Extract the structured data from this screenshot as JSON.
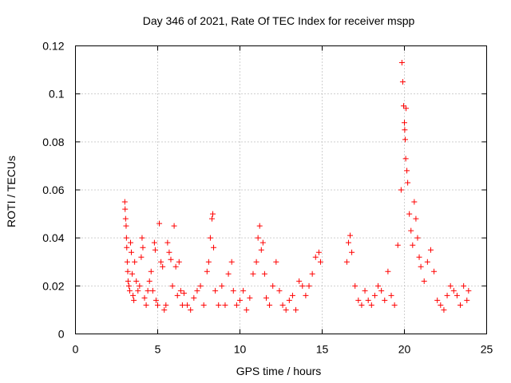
{
  "chart_data": {
    "type": "scatter",
    "title": "Day 346 of 2021, Rate Of TEC Index for receiver mspp",
    "xlabel": "GPS time / hours",
    "ylabel": "ROTI / TECUs",
    "xlim": [
      0,
      25
    ],
    "ylim": [
      0,
      0.12
    ],
    "x_ticks": [
      0,
      5,
      10,
      15,
      20,
      25
    ],
    "x_tick_labels": [
      "0",
      "5",
      "10",
      "15",
      "20",
      "25"
    ],
    "y_ticks": [
      0,
      0.02,
      0.04,
      0.06,
      0.08,
      0.1,
      0.12
    ],
    "y_tick_labels": [
      "0",
      "0.02",
      "0.04",
      "0.06",
      "0.08",
      "0.1",
      "0.12"
    ],
    "grid": true,
    "marker": "+",
    "color": "#ff0000",
    "series": [
      {
        "name": "ROTI",
        "points": [
          [
            3.0,
            0.055
          ],
          [
            3.02,
            0.052
          ],
          [
            3.05,
            0.048
          ],
          [
            3.08,
            0.045
          ],
          [
            3.1,
            0.04
          ],
          [
            3.12,
            0.036
          ],
          [
            3.15,
            0.03
          ],
          [
            3.18,
            0.026
          ],
          [
            3.2,
            0.022
          ],
          [
            3.25,
            0.02
          ],
          [
            3.3,
            0.018
          ],
          [
            3.35,
            0.038
          ],
          [
            3.4,
            0.034
          ],
          [
            3.45,
            0.025
          ],
          [
            3.5,
            0.016
          ],
          [
            3.55,
            0.014
          ],
          [
            3.6,
            0.03
          ],
          [
            3.7,
            0.022
          ],
          [
            3.8,
            0.018
          ],
          [
            3.9,
            0.02
          ],
          [
            4.0,
            0.032
          ],
          [
            4.05,
            0.04
          ],
          [
            4.1,
            0.036
          ],
          [
            4.2,
            0.015
          ],
          [
            4.3,
            0.012
          ],
          [
            4.4,
            0.018
          ],
          [
            4.5,
            0.022
          ],
          [
            4.6,
            0.026
          ],
          [
            4.7,
            0.018
          ],
          [
            4.8,
            0.038
          ],
          [
            4.85,
            0.035
          ],
          [
            4.9,
            0.014
          ],
          [
            5.0,
            0.012
          ],
          [
            5.1,
            0.046
          ],
          [
            5.2,
            0.03
          ],
          [
            5.3,
            0.028
          ],
          [
            5.4,
            0.01
          ],
          [
            5.5,
            0.012
          ],
          [
            5.6,
            0.038
          ],
          [
            5.7,
            0.034
          ],
          [
            5.8,
            0.031
          ],
          [
            5.9,
            0.02
          ],
          [
            6.0,
            0.045
          ],
          [
            6.1,
            0.028
          ],
          [
            6.2,
            0.016
          ],
          [
            6.3,
            0.03
          ],
          [
            6.4,
            0.018
          ],
          [
            6.5,
            0.012
          ],
          [
            6.6,
            0.017
          ],
          [
            6.8,
            0.012
          ],
          [
            7.0,
            0.01
          ],
          [
            7.2,
            0.015
          ],
          [
            7.4,
            0.018
          ],
          [
            7.6,
            0.02
          ],
          [
            7.8,
            0.012
          ],
          [
            8.0,
            0.026
          ],
          [
            8.1,
            0.03
          ],
          [
            8.2,
            0.04
          ],
          [
            8.3,
            0.048
          ],
          [
            8.35,
            0.05
          ],
          [
            8.4,
            0.036
          ],
          [
            8.5,
            0.018
          ],
          [
            8.7,
            0.012
          ],
          [
            8.9,
            0.02
          ],
          [
            9.1,
            0.012
          ],
          [
            9.3,
            0.025
          ],
          [
            9.5,
            0.03
          ],
          [
            9.6,
            0.018
          ],
          [
            9.8,
            0.012
          ],
          [
            10.0,
            0.014
          ],
          [
            10.2,
            0.018
          ],
          [
            10.4,
            0.01
          ],
          [
            10.6,
            0.015
          ],
          [
            10.8,
            0.025
          ],
          [
            11.0,
            0.03
          ],
          [
            11.1,
            0.04
          ],
          [
            11.2,
            0.045
          ],
          [
            11.3,
            0.035
          ],
          [
            11.4,
            0.038
          ],
          [
            11.5,
            0.025
          ],
          [
            11.6,
            0.015
          ],
          [
            11.8,
            0.012
          ],
          [
            12.0,
            0.02
          ],
          [
            12.2,
            0.03
          ],
          [
            12.4,
            0.018
          ],
          [
            12.6,
            0.012
          ],
          [
            12.8,
            0.01
          ],
          [
            13.0,
            0.014
          ],
          [
            13.2,
            0.016
          ],
          [
            13.4,
            0.01
          ],
          [
            13.6,
            0.022
          ],
          [
            13.8,
            0.02
          ],
          [
            14.0,
            0.016
          ],
          [
            14.2,
            0.02
          ],
          [
            14.4,
            0.025
          ],
          [
            14.6,
            0.032
          ],
          [
            14.8,
            0.034
          ],
          [
            14.9,
            0.03
          ],
          [
            16.5,
            0.03
          ],
          [
            16.6,
            0.038
          ],
          [
            16.7,
            0.041
          ],
          [
            16.8,
            0.034
          ],
          [
            17.0,
            0.02
          ],
          [
            17.2,
            0.014
          ],
          [
            17.4,
            0.012
          ],
          [
            17.6,
            0.018
          ],
          [
            17.8,
            0.014
          ],
          [
            18.0,
            0.012
          ],
          [
            18.2,
            0.016
          ],
          [
            18.4,
            0.02
          ],
          [
            18.6,
            0.018
          ],
          [
            18.8,
            0.014
          ],
          [
            19.0,
            0.026
          ],
          [
            19.2,
            0.016
          ],
          [
            19.4,
            0.012
          ],
          [
            19.6,
            0.037
          ],
          [
            19.8,
            0.06
          ],
          [
            19.85,
            0.113
          ],
          [
            19.9,
            0.105
          ],
          [
            19.95,
            0.095
          ],
          [
            20.0,
            0.088
          ],
          [
            20.02,
            0.085
          ],
          [
            20.05,
            0.081
          ],
          [
            20.08,
            0.073
          ],
          [
            20.1,
            0.094
          ],
          [
            20.15,
            0.068
          ],
          [
            20.2,
            0.063
          ],
          [
            20.3,
            0.05
          ],
          [
            20.4,
            0.043
          ],
          [
            20.5,
            0.037
          ],
          [
            20.6,
            0.055
          ],
          [
            20.7,
            0.048
          ],
          [
            20.8,
            0.04
          ],
          [
            20.9,
            0.032
          ],
          [
            21.0,
            0.028
          ],
          [
            21.2,
            0.022
          ],
          [
            21.4,
            0.03
          ],
          [
            21.6,
            0.035
          ],
          [
            21.8,
            0.026
          ],
          [
            22.0,
            0.014
          ],
          [
            22.2,
            0.012
          ],
          [
            22.4,
            0.01
          ],
          [
            22.6,
            0.016
          ],
          [
            22.8,
            0.02
          ],
          [
            23.0,
            0.018
          ],
          [
            23.2,
            0.016
          ],
          [
            23.4,
            0.012
          ],
          [
            23.6,
            0.02
          ],
          [
            23.8,
            0.014
          ],
          [
            23.9,
            0.018
          ]
        ]
      }
    ]
  }
}
